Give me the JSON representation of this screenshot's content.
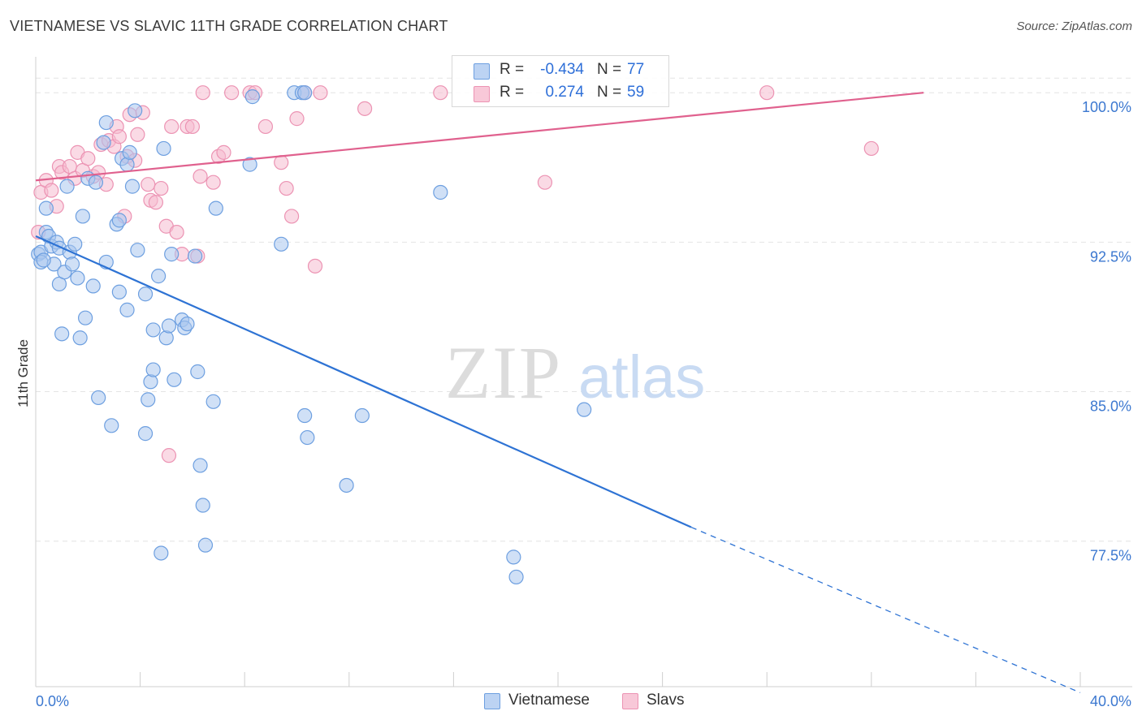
{
  "title": "VIETNAMESE VS SLAVIC 11TH GRADE CORRELATION CHART",
  "source": "Source: ZipAtlas.com",
  "watermark": {
    "zip": "ZIP",
    "atlas": "atlas"
  },
  "legend": {
    "rows": [
      {
        "r_label": "R =",
        "r_value": "-0.434",
        "n_label": "N =",
        "n_value": "77"
      },
      {
        "r_label": "R =",
        "r_value": "0.274",
        "n_label": "N =",
        "n_value": "59"
      }
    ]
  },
  "bottom_legend": [
    {
      "label": "Vietnamese"
    },
    {
      "label": "Slavs"
    }
  ],
  "colors": {
    "vietnamese_fill": "#a9c6ef",
    "vietnamese_stroke": "#6d9fe0",
    "vietnamese_line": "#2e73d4",
    "slavs_fill": "#f6bcd0",
    "slavs_stroke": "#ec93b3",
    "slavs_line": "#e0618e",
    "grid": "#e4e4e4",
    "axis_text": "#3c78d0"
  },
  "chart_data": {
    "type": "scatter",
    "title": "VIETNAMESE VS SLAVIC 11TH GRADE CORRELATION CHART",
    "xlabel": "",
    "ylabel": "11th Grade",
    "xlim": [
      0,
      40
    ],
    "ylim": [
      70.2,
      101.8
    ],
    "x_tick_labels": [
      "0.0%",
      "40.0%"
    ],
    "y_ticks": [
      77.5,
      85.0,
      92.5,
      100.0
    ],
    "y_tick_labels": [
      "77.5%",
      "85.0%",
      "92.5%",
      "100.0%"
    ],
    "grid": true,
    "legend_position": "top-center",
    "series": [
      {
        "name": "Vietnamese",
        "r": -0.434,
        "n": 77,
        "trend": {
          "x0": 0,
          "y0": 92.8,
          "x1": 25.1,
          "y1": 78.2,
          "dash_to_x": 40,
          "dash_to_y": 69.9
        },
        "points": [
          [
            0.1,
            91.9
          ],
          [
            0.2,
            92.0
          ],
          [
            0.2,
            91.5
          ],
          [
            0.4,
            94.2
          ],
          [
            0.4,
            93.0
          ],
          [
            0.5,
            92.8
          ],
          [
            0.6,
            92.3
          ],
          [
            0.7,
            91.4
          ],
          [
            0.8,
            92.5
          ],
          [
            0.9,
            90.4
          ],
          [
            0.9,
            92.2
          ],
          [
            1.0,
            87.9
          ],
          [
            1.1,
            91.0
          ],
          [
            1.2,
            95.3
          ],
          [
            1.3,
            92.0
          ],
          [
            1.4,
            91.4
          ],
          [
            1.5,
            92.4
          ],
          [
            1.6,
            90.7
          ],
          [
            1.7,
            87.7
          ],
          [
            1.8,
            93.8
          ],
          [
            1.9,
            88.7
          ],
          [
            2.0,
            95.7
          ],
          [
            2.2,
            90.3
          ],
          [
            2.3,
            95.5
          ],
          [
            2.4,
            84.7
          ],
          [
            2.6,
            97.5
          ],
          [
            2.7,
            91.5
          ],
          [
            2.7,
            98.5
          ],
          [
            2.9,
            83.3
          ],
          [
            3.1,
            93.4
          ],
          [
            3.2,
            93.6
          ],
          [
            3.2,
            90.0
          ],
          [
            3.3,
            96.7
          ],
          [
            3.5,
            96.4
          ],
          [
            3.5,
            89.1
          ],
          [
            3.6,
            97.0
          ],
          [
            3.7,
            95.3
          ],
          [
            3.8,
            99.1
          ],
          [
            3.9,
            92.1
          ],
          [
            4.2,
            89.9
          ],
          [
            4.2,
            82.9
          ],
          [
            4.3,
            84.6
          ],
          [
            4.4,
            85.5
          ],
          [
            4.5,
            86.1
          ],
          [
            4.5,
            88.1
          ],
          [
            4.7,
            90.8
          ],
          [
            4.9,
            97.2
          ],
          [
            5.0,
            87.7
          ],
          [
            5.1,
            88.3
          ],
          [
            5.2,
            91.9
          ],
          [
            5.3,
            85.6
          ],
          [
            5.6,
            88.6
          ],
          [
            5.7,
            88.2
          ],
          [
            5.8,
            88.4
          ],
          [
            6.1,
            91.8
          ],
          [
            6.2,
            86.0
          ],
          [
            6.3,
            81.3
          ],
          [
            6.4,
            79.3
          ],
          [
            6.5,
            77.3
          ],
          [
            6.8,
            84.5
          ],
          [
            6.9,
            94.2
          ],
          [
            4.8,
            76.9
          ],
          [
            8.2,
            96.4
          ],
          [
            8.3,
            99.8
          ],
          [
            9.4,
            92.4
          ],
          [
            9.9,
            100.0
          ],
          [
            10.2,
            100.0
          ],
          [
            10.3,
            100.0
          ],
          [
            10.3,
            83.8
          ],
          [
            10.4,
            82.7
          ],
          [
            11.9,
            80.3
          ],
          [
            12.5,
            83.8
          ],
          [
            15.5,
            95.0
          ],
          [
            21.0,
            84.1
          ],
          [
            18.4,
            75.7
          ],
          [
            18.3,
            76.7
          ],
          [
            0.3,
            91.6
          ]
        ]
      },
      {
        "name": "Slavs",
        "r": 0.274,
        "n": 59,
        "trend": {
          "x0": 0,
          "y0": 95.6,
          "x1": 34,
          "y1": 100.0
        },
        "points": [
          [
            0.1,
            93.0
          ],
          [
            0.2,
            95.0
          ],
          [
            0.4,
            95.6
          ],
          [
            0.6,
            95.1
          ],
          [
            0.8,
            94.3
          ],
          [
            0.9,
            96.3
          ],
          [
            1.0,
            96.0
          ],
          [
            1.3,
            96.3
          ],
          [
            1.5,
            95.7
          ],
          [
            1.6,
            97.0
          ],
          [
            1.8,
            96.1
          ],
          [
            2.0,
            96.7
          ],
          [
            2.2,
            95.8
          ],
          [
            2.4,
            96.0
          ],
          [
            2.5,
            97.4
          ],
          [
            2.7,
            95.4
          ],
          [
            2.8,
            97.6
          ],
          [
            3.0,
            97.3
          ],
          [
            3.1,
            98.3
          ],
          [
            3.2,
            97.8
          ],
          [
            3.4,
            93.8
          ],
          [
            3.5,
            96.8
          ],
          [
            3.6,
            98.9
          ],
          [
            3.8,
            96.6
          ],
          [
            3.9,
            97.9
          ],
          [
            4.1,
            99.0
          ],
          [
            4.3,
            95.4
          ],
          [
            4.4,
            94.6
          ],
          [
            4.6,
            94.5
          ],
          [
            4.8,
            95.2
          ],
          [
            5.0,
            93.3
          ],
          [
            5.2,
            98.3
          ],
          [
            5.4,
            93.0
          ],
          [
            5.6,
            91.9
          ],
          [
            5.8,
            98.3
          ],
          [
            6.0,
            98.3
          ],
          [
            6.2,
            91.8
          ],
          [
            6.3,
            95.8
          ],
          [
            6.4,
            100.0
          ],
          [
            6.8,
            95.5
          ],
          [
            7.0,
            96.8
          ],
          [
            7.2,
            97.0
          ],
          [
            7.5,
            100.0
          ],
          [
            8.2,
            100.0
          ],
          [
            8.4,
            100.0
          ],
          [
            8.8,
            98.3
          ],
          [
            9.4,
            96.5
          ],
          [
            9.6,
            95.2
          ],
          [
            9.8,
            93.8
          ],
          [
            10.0,
            98.7
          ],
          [
            10.3,
            100.0
          ],
          [
            10.7,
            91.3
          ],
          [
            10.9,
            100.0
          ],
          [
            12.6,
            99.2
          ],
          [
            15.5,
            100.0
          ],
          [
            19.5,
            95.5
          ],
          [
            28.0,
            100.0
          ],
          [
            32.0,
            97.2
          ],
          [
            5.1,
            81.8
          ]
        ]
      }
    ]
  }
}
